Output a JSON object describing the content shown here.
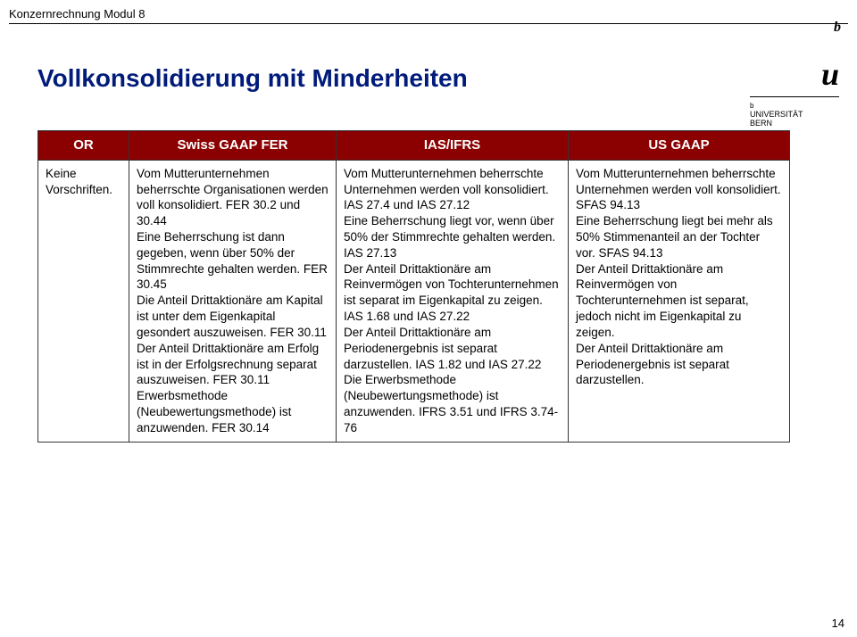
{
  "header": {
    "label": "Konzernrechnung Modul 8"
  },
  "logo": {
    "b_sup": "b",
    "u": "u",
    "b_low": "",
    "divider": "b",
    "line1": "UNIVERSITÄT",
    "line2": "BERN"
  },
  "title": "Vollkonsolidierung mit Minderheiten",
  "columns": {
    "c0": "OR",
    "c1": "Swiss GAAP FER",
    "c2": "IAS/IFRS",
    "c3": "US GAAP"
  },
  "cells": {
    "r0c0": "Keine Vorschriften.",
    "r0c1": "Vom Mutterunternehmen beherrschte Organisationen werden voll konsolidiert. FER 30.2 und 30.44\nEine Beherrschung ist dann gegeben, wenn über 50% der Stimmrechte gehalten werden. FER 30.45\nDie Anteil Drittaktionäre am Kapital ist unter dem Eigenkapital gesondert auszuweisen. FER 30.11\nDer Anteil Drittaktionäre am Erfolg ist in der Erfolgsrechnung separat auszuweisen. FER 30.11\nErwerbsmethode (Neubewertungsmethode) ist anzuwenden. FER 30.14",
    "r0c2": "Vom Mutterunternehmen beherrschte Unternehmen werden voll konsolidiert. IAS 27.4 und IAS 27.12\nEine Beherrschung liegt vor, wenn über 50% der Stimmrechte gehalten werden. IAS 27.13\nDer Anteil Drittaktionäre am Reinvermögen von Tochterunternehmen ist separat im Eigenkapital zu zeigen. IAS 1.68 und IAS 27.22\nDer Anteil Drittaktionäre am Periodenergebnis ist separat darzustellen. IAS 1.82 und IAS 27.22\nDie Erwerbsmethode (Neubewertungsmethode) ist anzuwenden. IFRS 3.51 und IFRS 3.74-76",
    "r0c3": "Vom Mutterunternehmen beherrschte Unternehmen werden voll konsolidiert. SFAS 94.13\nEine Beherrschung liegt bei mehr als 50% Stimmenanteil an der Tochter vor.  SFAS 94.13\nDer Anteil Drittaktionäre am Reinvermögen von Tochterunternehmen ist separat, jedoch nicht im Eigenkapital zu zeigen.\nDer Anteil Drittaktionäre am Periodenergebnis ist separat darzustellen."
  },
  "pagenum": "14",
  "style": {
    "header_color": "#8b0000",
    "header_text": "#ffffff",
    "title_color": "#001b7a",
    "border_color": "#333333",
    "font_body": 13.5,
    "font_header": 15,
    "font_title": 28
  }
}
